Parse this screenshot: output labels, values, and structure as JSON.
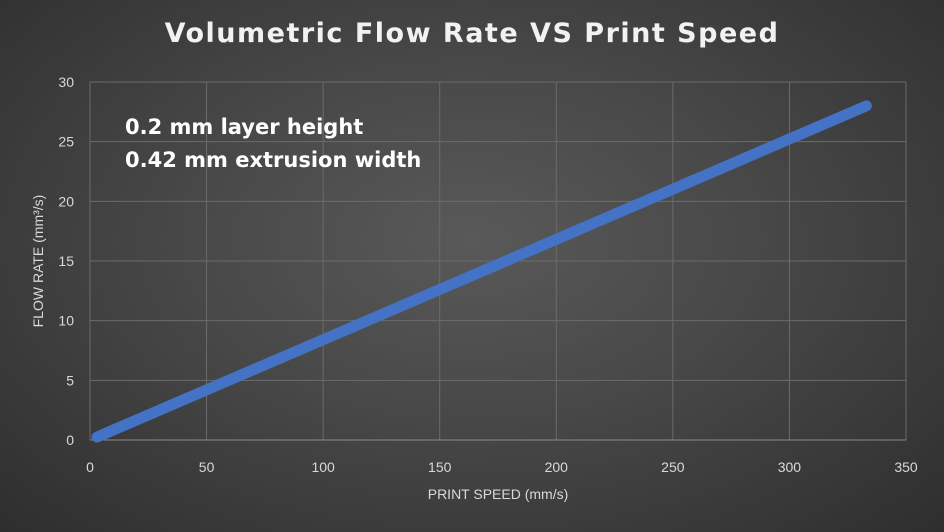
{
  "chart_data": {
    "type": "line",
    "title": "Volumetric Flow Rate VS Print Speed",
    "xlabel": "PRINT SPEED (mm/s)",
    "ylabel": "FLOW RATE (mm³/s)",
    "xlim": [
      0,
      350
    ],
    "ylim": [
      0,
      30
    ],
    "x_ticks": [
      0,
      50,
      100,
      150,
      200,
      250,
      300,
      350
    ],
    "y_ticks": [
      0,
      5,
      10,
      15,
      20,
      25,
      30
    ],
    "grid": true,
    "annotations": [
      "0.2 mm layer height",
      "0.42 mm extrusion width"
    ],
    "series": [
      {
        "x": [
          3,
          333
        ],
        "y": [
          0.25,
          28.0
        ]
      }
    ],
    "colors": {
      "line": "#4472c4",
      "grid": "#6b6b6b",
      "text": "#d9d9d9"
    }
  }
}
